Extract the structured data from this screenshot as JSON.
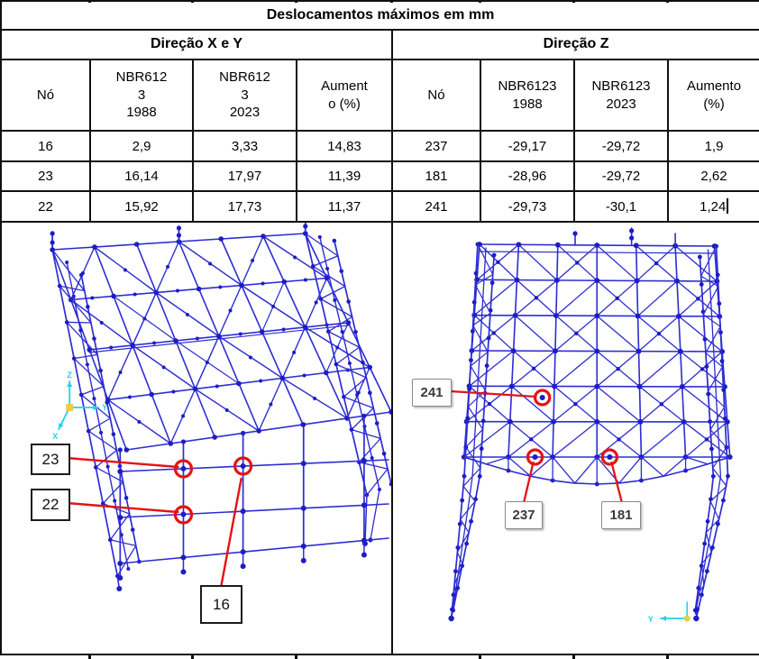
{
  "table": {
    "title": "Deslocamentos máximos em mm",
    "sections": [
      {
        "title": "Direção X e Y",
        "headers": [
          "Nó",
          "NBR612\n3\n1988",
          "NBR612\n3\n2023",
          "Aument\no (%)"
        ],
        "rows": [
          [
            "16",
            "2,9",
            "3,33",
            "14,83"
          ],
          [
            "23",
            "16,14",
            "17,97",
            "11,39"
          ],
          [
            "22",
            "15,92",
            "17,73",
            "11,37"
          ]
        ]
      },
      {
        "title": "Direção Z",
        "headers": [
          "Nó",
          "NBR6123\n1988",
          "NBR6123\n2023",
          "Aumento\n(%)"
        ],
        "rows": [
          [
            "237",
            "-29,17",
            "-29,72",
            "1,9"
          ],
          [
            "181",
            "-28,96",
            "-29,72",
            "2,62"
          ],
          [
            "241",
            "-29,73",
            "-30,1",
            "1,24"
          ]
        ]
      }
    ]
  },
  "figures": {
    "left": {
      "view": "isometric model",
      "callouts": [
        "23",
        "22",
        "16"
      ],
      "axis_labels": [
        "Z",
        "Y",
        "X"
      ]
    },
    "right": {
      "view": "front model",
      "callouts": [
        "241",
        "237",
        "181"
      ],
      "axis_labels": [
        "Y"
      ]
    }
  },
  "colors": {
    "structure_blue": "#2d2dd2",
    "node_blue": "#1d1dc4",
    "callout_red": "#e31414",
    "axis_cyan": "#22d2ea",
    "axis_origin_yellow": "#e6cf4a",
    "border_black": "#101010"
  }
}
